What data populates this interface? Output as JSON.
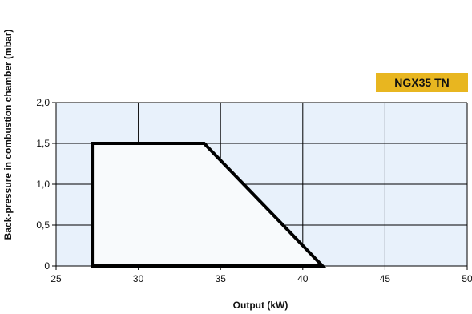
{
  "chart_data": {
    "type": "area",
    "badge": "NGX35 TN",
    "xlabel": "Output (kW)",
    "ylabel": "Back-pressure in combustion chamber (mbar)",
    "xlim": [
      25,
      50
    ],
    "ylim": [
      0,
      2.0
    ],
    "x_ticks": [
      25,
      30,
      35,
      40,
      45,
      50
    ],
    "x_tick_labels": [
      "25",
      "30",
      "35",
      "40",
      "45",
      "50"
    ],
    "y_ticks": [
      0,
      0.5,
      1.0,
      1.5,
      2.0
    ],
    "y_tick_labels": [
      "0",
      "0,5",
      "1,0",
      "1,5",
      "2,0"
    ],
    "grid": true,
    "series": [
      {
        "points": [
          {
            "x": 27.2,
            "y": 0
          },
          {
            "x": 27.2,
            "y": 1.5
          },
          {
            "x": 34.0,
            "y": 1.5
          },
          {
            "x": 41.2,
            "y": 0
          }
        ]
      }
    ],
    "colors": {
      "plot_background": "#e8f1fb",
      "region_fill": "#f8fafc",
      "grid": "#000000",
      "outline": "#000000",
      "badge_background": "#e8b620"
    }
  }
}
